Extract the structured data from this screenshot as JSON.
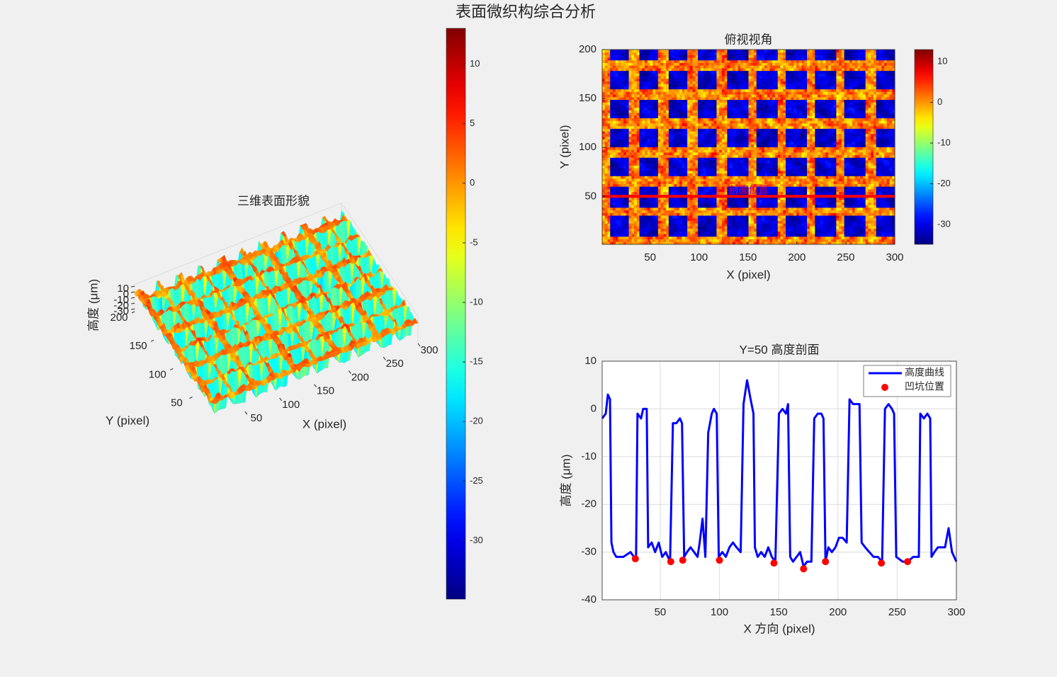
{
  "title": "表面微织构综合分析",
  "chart_data": [
    {
      "type": "surface",
      "title": "三维表面形貌",
      "xlabel": "X (pixel)",
      "ylabel": "Y (pixel)",
      "zlabel": "高度 (μm)",
      "xlim": [
        1,
        300
      ],
      "ylim": [
        1,
        200
      ],
      "zlim": [
        -34.9,
        13
      ],
      "xticks": [
        50,
        100,
        150,
        200,
        250,
        300
      ],
      "yticks": [
        50,
        100,
        150,
        200
      ],
      "zticks": [
        -30,
        -20,
        -10,
        0,
        10
      ],
      "colormap": "jet",
      "clim": [
        -34.9,
        13
      ],
      "colorbar_ticks": [
        -30,
        -25,
        -20,
        -15,
        -10,
        -5,
        0,
        5,
        10
      ]
    },
    {
      "type": "heatmap",
      "title": "俯视视角",
      "xlabel": "X (pixel)",
      "ylabel": "Y (pixel)",
      "xlim": [
        1,
        300
      ],
      "ylim": [
        1,
        200
      ],
      "xticks": [
        50,
        100,
        150,
        200,
        250,
        300
      ],
      "yticks": [
        50,
        100,
        150,
        200
      ],
      "colormap": "jet",
      "clim": [
        -34.9,
        13
      ],
      "colorbar_ticks": [
        -30,
        -20,
        -10,
        0,
        10
      ],
      "profile_y": 50,
      "profile_color": "#ff0000",
      "annotation": "剖面位置"
    },
    {
      "type": "line",
      "title": "Y=50 高度剖面",
      "xlabel": "X 方向 (pixel)",
      "ylabel": "高度 (μm)",
      "xlim": [
        1,
        300
      ],
      "ylim": [
        -40,
        10
      ],
      "xticks": [
        50,
        100,
        150,
        200,
        250,
        300
      ],
      "yticks": [
        -40,
        -30,
        -20,
        -10,
        0,
        10
      ],
      "grid": true,
      "legend": "upper right",
      "series": [
        {
          "name": "高度曲线",
          "color": "#0000ff",
          "x": [
            1,
            4,
            5.8,
            7.6,
            8.8,
            10.5,
            12.9,
            18.9,
            24.9,
            27.8,
            29.6,
            30.8,
            33.8,
            35.6,
            38.6,
            39.8,
            42.8,
            45.7,
            48.7,
            51.7,
            54.7,
            58.3,
            60.7,
            63.6,
            66.6,
            68.4,
            70.2,
            72.6,
            75.6,
            78.6,
            81.5,
            83.3,
            85.7,
            88.1,
            90.5,
            93.5,
            95.3,
            97.7,
            99.4,
            102.4,
            105.4,
            108.4,
            111.4,
            114.4,
            117.9,
            120.3,
            123.3,
            126.3,
            128.7,
            129.9,
            132.3,
            135.2,
            138.2,
            141.2,
            144.2,
            147.2,
            150.2,
            153.2,
            156.1,
            157.9,
            159.7,
            162.1,
            165.1,
            168.1,
            171.0,
            174.0,
            177.6,
            180.0,
            183.0,
            186.0,
            187.8,
            189.5,
            191.9,
            194.9,
            197.9,
            200.9,
            203.9,
            207.4,
            209.8,
            212.8,
            215.8,
            218.2,
            220.0,
            223.0,
            226.5,
            230.1,
            233.7,
            237.3,
            239.7,
            242.7,
            245.6,
            247.4,
            249.2,
            254.6,
            258.8,
            263.6,
            268.3,
            269.5,
            272.5,
            275.5,
            277.9,
            279.0,
            281.4,
            284.4,
            290.4,
            293.4,
            296.3,
            300
          ],
          "values": [
            -2,
            -1,
            3,
            2,
            -28,
            -30,
            -31,
            -31,
            -30,
            -31,
            -31,
            -1,
            -2,
            0,
            0,
            -29,
            -28,
            -30,
            -28,
            -31,
            -30,
            -32,
            -3,
            -3,
            -2,
            -3,
            -31,
            -30,
            -29,
            -30,
            -31,
            -28,
            -23,
            -31,
            -5,
            -1,
            0,
            -1,
            -31,
            -30,
            -31,
            -29,
            -28,
            -29,
            -30,
            1,
            6,
            2,
            -1,
            -29,
            -31,
            -30,
            -31,
            -29,
            -31,
            -32,
            -1,
            0,
            -1,
            1,
            -31,
            -32,
            -31,
            -30,
            -33,
            -32,
            -32,
            -2,
            -1,
            -1,
            -2,
            -32,
            -29,
            -30,
            -29,
            -27,
            -27,
            -28,
            2,
            1,
            1,
            1,
            -28,
            -29,
            -30,
            -31,
            -31,
            -32,
            0,
            1,
            0,
            -1,
            -31,
            -32,
            -32,
            -31,
            -31,
            -1,
            -2,
            -1,
            -2,
            -31,
            -30,
            -29,
            -29,
            -25,
            -30,
            -32
          ]
        },
        {
          "name": "凹坑位置",
          "color": "#ff0000",
          "marker": "circle",
          "x": [
            29.0,
            58.9,
            69.0,
            100.0,
            146.0,
            171.0,
            189.5,
            236.7,
            258.8
          ],
          "values": [
            -31.4,
            -32.0,
            -31.7,
            -31.7,
            -32.3,
            -33.5,
            -32.0,
            -32.3,
            -32.0
          ]
        }
      ]
    }
  ]
}
